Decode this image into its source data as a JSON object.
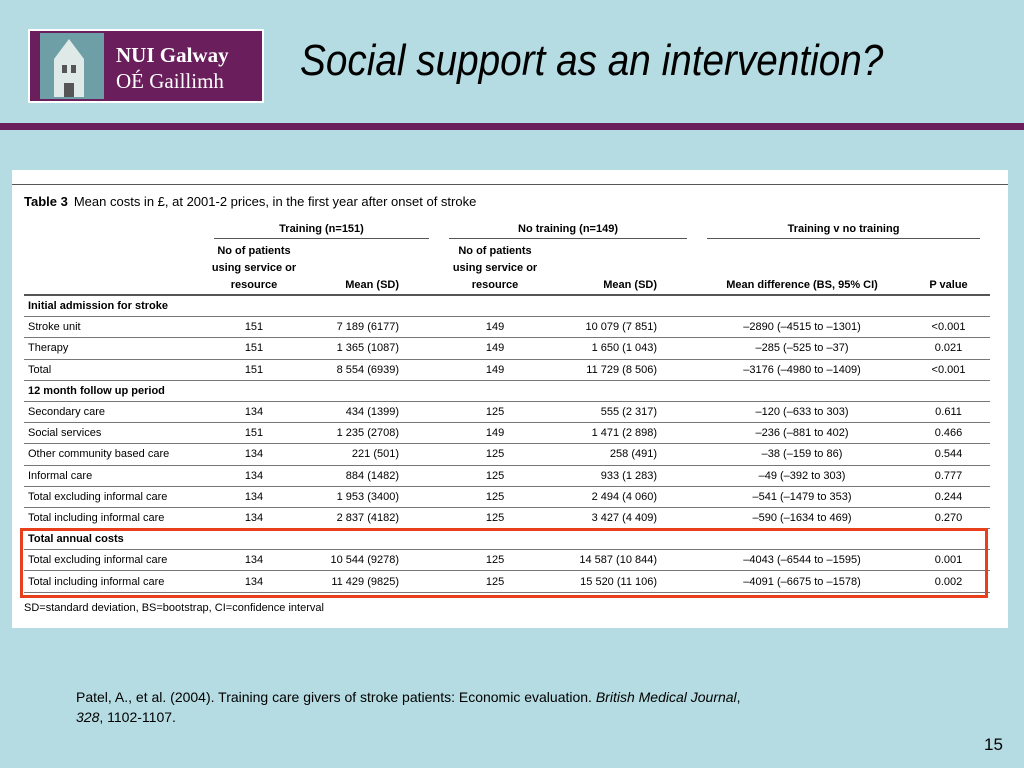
{
  "header": {
    "logo_line1": "NUI Galway",
    "logo_line2": "OÉ Gaillimh",
    "title": "Social support as an intervention?"
  },
  "table": {
    "caption_label": "Table 3",
    "caption": "Mean costs in £, at 2001-2 prices, in the first year after onset of stroke",
    "groups": [
      "Training (n=151)",
      "No training (n=149)",
      "Training v no training"
    ],
    "columns": [
      "No of patients using service or resource",
      "Mean (SD)",
      "No of patients using service or resource",
      "Mean (SD)",
      "Mean difference (BS, 95% CI)",
      "P value"
    ],
    "rows": [
      [
        "Initial admission for stroke"
      ],
      [
        "Stroke unit",
        "151",
        "7 189 (6177)",
        "149",
        "10 079 (7 851)",
        "–2890 (–4515 to –1301)",
        "<0.001"
      ],
      [
        "Therapy",
        "151",
        "1 365 (1087)",
        "149",
        "1 650 (1 043)",
        "–285 (–525 to –37)",
        "0.021"
      ],
      [
        "Total",
        "151",
        "8 554 (6939)",
        "149",
        "11 729 (8 506)",
        "–3176 (–4980 to –1409)",
        "<0.001"
      ],
      [
        "12 month follow up period"
      ],
      [
        "Secondary care",
        "134",
        "434 (1399)",
        "125",
        "555 (2 317)",
        "–120 (–633 to 303)",
        "0.611"
      ],
      [
        "Social services",
        "151",
        "1 235 (2708)",
        "149",
        "1 471 (2 898)",
        "–236 (–881 to 402)",
        "0.466"
      ],
      [
        "Other community based care",
        "134",
        "221 (501)",
        "125",
        "258 (491)",
        "–38 (–159 to 86)",
        "0.544"
      ],
      [
        "Informal care",
        "134",
        "884 (1482)",
        "125",
        "933 (1 283)",
        "–49 (–392 to 303)",
        "0.777"
      ],
      [
        "Total excluding informal care",
        "134",
        "1 953 (3400)",
        "125",
        "2 494 (4 060)",
        "–541 (–1479 to 353)",
        "0.244"
      ],
      [
        "Total including informal care",
        "134",
        "2 837 (4182)",
        "125",
        "3 427 (4 409)",
        "–590 (–1634 to 469)",
        "0.270"
      ],
      [
        "Total annual costs"
      ],
      [
        "Total excluding informal care",
        "134",
        "10 544 (9278)",
        "125",
        "14 587 (10 844)",
        "–4043 (–6544 to –1595)",
        "0.001"
      ],
      [
        "Total including informal care",
        "134",
        "11 429 (9825)",
        "125",
        "15 520 (11 106)",
        "–4091 (–6675 to –1578)",
        "0.002"
      ]
    ],
    "footnote": "SD=standard deviation, BS=bootstrap, CI=confidence interval"
  },
  "citation": {
    "text": "Patel, A., et al. (2004).  Training care givers of stroke patients:  Economic evaluation.  ",
    "journal": "British Medical Journal",
    "sep": ",",
    "volume": "328",
    "pages": ", 1102-1107."
  },
  "page_number": "15"
}
